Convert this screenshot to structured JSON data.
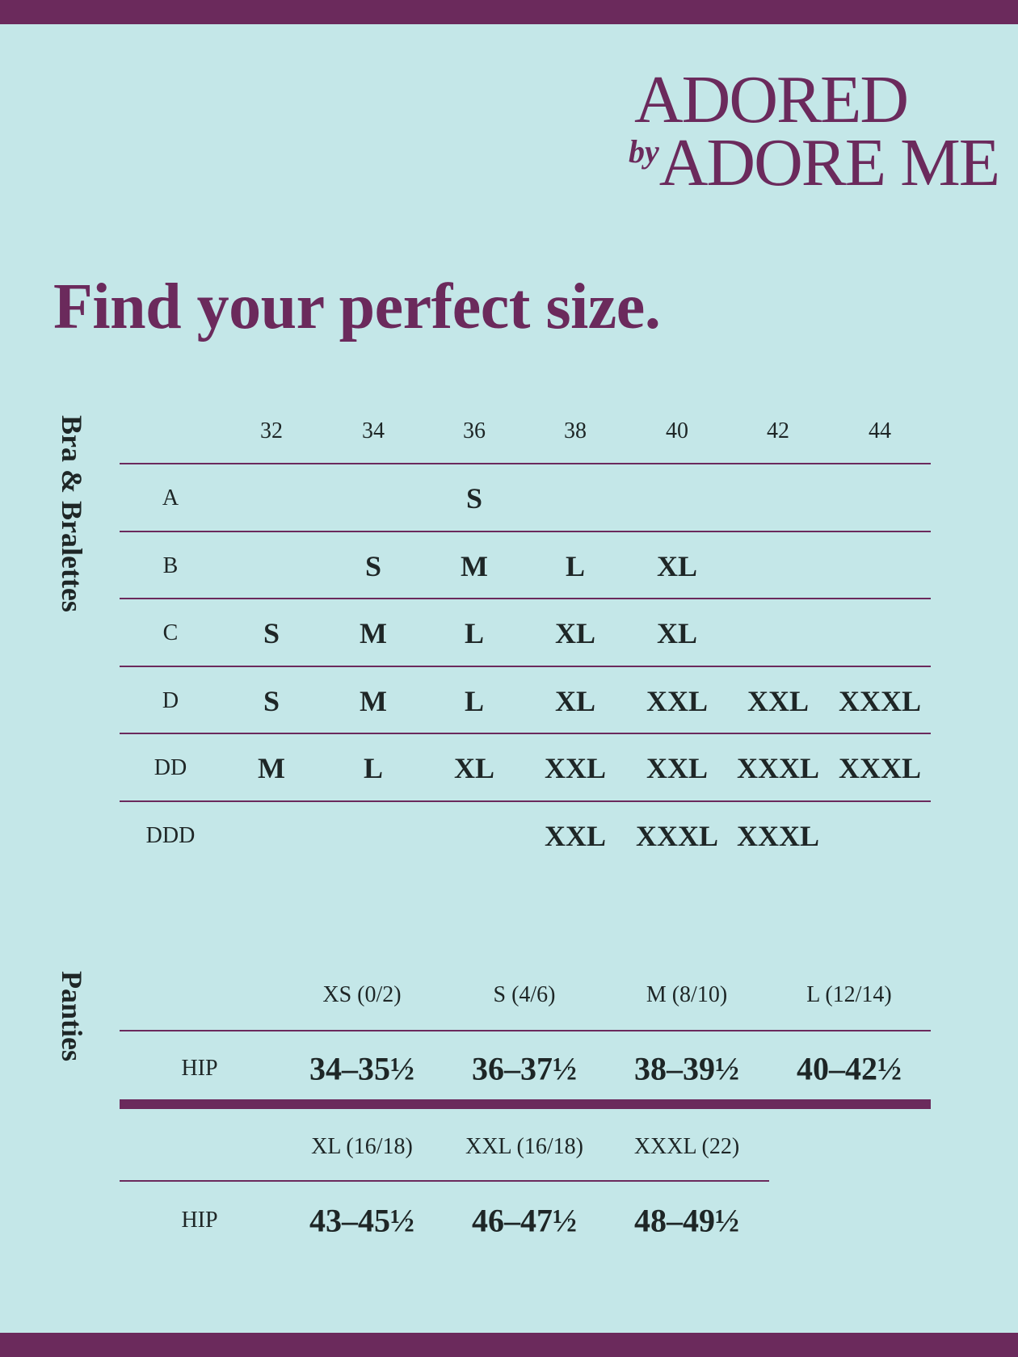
{
  "brand": {
    "line1": "ADORED",
    "by": "by",
    "line2": "ADORE ME"
  },
  "title": "Find your perfect size.",
  "colors": {
    "purple": "#6b2a5c",
    "background": "#c4e7e8",
    "text": "#1e2626"
  },
  "bra": {
    "label": "Bra & Bralettes",
    "bands": [
      "32",
      "34",
      "36",
      "38",
      "40",
      "42",
      "44"
    ],
    "rows": [
      {
        "cup": "A",
        "sizes": [
          "",
          "",
          "S",
          "",
          "",
          "",
          ""
        ]
      },
      {
        "cup": "B",
        "sizes": [
          "",
          "S",
          "M",
          "L",
          "XL",
          "",
          ""
        ]
      },
      {
        "cup": "C",
        "sizes": [
          "S",
          "M",
          "L",
          "XL",
          "XL",
          "",
          ""
        ]
      },
      {
        "cup": "D",
        "sizes": [
          "S",
          "M",
          "L",
          "XL",
          "XXL",
          "XXL",
          "XXXL"
        ]
      },
      {
        "cup": "DD",
        "sizes": [
          "M",
          "L",
          "XL",
          "XXL",
          "XXL",
          "XXXL",
          "XXXL"
        ]
      },
      {
        "cup": "DDD",
        "sizes": [
          "",
          "",
          "",
          "XXL",
          "XXXL",
          "XXXL",
          ""
        ]
      }
    ]
  },
  "panties": {
    "label": "Panties",
    "tables": [
      {
        "headers": [
          "XS (0/2)",
          "S (4/6)",
          "M (8/10)",
          "L (12/14)"
        ],
        "row_label": "HIP",
        "values": [
          "34–35½",
          "36–37½",
          "38–39½",
          "40–42½"
        ]
      },
      {
        "headers": [
          "XL (16/18)",
          "XXL (16/18)",
          "XXXL (22)"
        ],
        "row_label": "HIP",
        "values": [
          "43–45½",
          "46–47½",
          "48–49½"
        ]
      }
    ]
  }
}
